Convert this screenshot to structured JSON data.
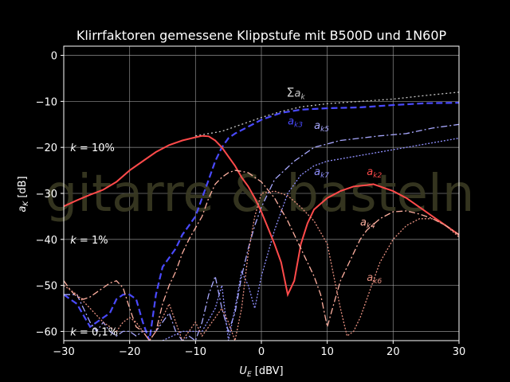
{
  "chart_data": {
    "type": "line",
    "title": "Klirrfaktoren gemessene Klippstufe mit B500D und 1N60P",
    "xlabel_main": "U",
    "xlabel_sub": "E",
    "xlabel_unit": " [dBV]",
    "ylabel_main": "a",
    "ylabel_sub": "K",
    "ylabel_unit": " [dB]",
    "xlim": [
      -30,
      30
    ],
    "ylim": [
      -62,
      2
    ],
    "xticks": [
      -30,
      -20,
      -10,
      0,
      10,
      20,
      30
    ],
    "yticks": [
      0,
      -10,
      -20,
      -30,
      -40,
      -50,
      -60
    ],
    "xtick_labels": [
      "−30",
      "−20",
      "−10",
      "0",
      "10",
      "20",
      "30"
    ],
    "ytick_labels": [
      "0",
      "−10",
      "−20",
      "−30",
      "−40",
      "−50",
      "−60"
    ],
    "grid": true,
    "watermark": "gitarre & basteln",
    "annotations": [
      {
        "text": "k = 10%",
        "x": -29,
        "y": -20
      },
      {
        "text": "k = 1%",
        "x": -29,
        "y": -40
      },
      {
        "text": "k = 0,1%",
        "x": -29,
        "y": -60
      }
    ],
    "series": [
      {
        "name": "Σ a",
        "sub": "k",
        "color": "#c8c8c8",
        "dash": "2,3",
        "label_x": 3.8,
        "label_y": -9,
        "x": [
          -10,
          -6,
          -3,
          0,
          3,
          6,
          10,
          15,
          20,
          25,
          30
        ],
        "y": [
          -17.5,
          -16.5,
          -15,
          -13.5,
          -12.2,
          -11.2,
          -10.5,
          -10,
          -9.5,
          -8.7,
          -8
        ]
      },
      {
        "name": "a",
        "sub": "k3",
        "color": "#4a4aff",
        "dash": "8,4",
        "label_x": 4,
        "label_y": -15,
        "x": [
          -30,
          -28,
          -26,
          -24,
          -23,
          -22,
          -21,
          -20,
          -19,
          -18,
          -17,
          -16,
          -15,
          -14,
          -13,
          -12,
          -11,
          -10,
          -9,
          -8,
          -7,
          -6,
          -5,
          -4,
          -2,
          0,
          3,
          6,
          10,
          15,
          20,
          25,
          30
        ],
        "y": [
          -52,
          -54,
          -59,
          -57,
          -56,
          -53,
          -52,
          -52,
          -53,
          -58,
          -62,
          -52,
          -46,
          -44,
          -42,
          -39,
          -37,
          -35,
          -31,
          -27,
          -23,
          -20,
          -18,
          -17,
          -15.5,
          -14,
          -12.5,
          -11.8,
          -11.5,
          -11.3,
          -10.8,
          -10.4,
          -10.3
        ]
      },
      {
        "name": "a",
        "sub": "k5",
        "color": "#a8a8ff",
        "dash": "8,3,2,3",
        "label_x": 8,
        "label_y": -16,
        "x": [
          -30,
          -28,
          -27,
          -26,
          -25,
          -24,
          -23,
          -22,
          -21,
          -20,
          -19,
          -18,
          -17,
          -16,
          -15,
          -14,
          -13,
          -12,
          -11,
          -10,
          -9,
          -8,
          -7,
          -6,
          -5,
          -4,
          -3,
          -2,
          -1,
          0,
          2,
          5,
          8,
          12,
          18,
          22,
          26,
          30
        ],
        "y": [
          -52,
          -52,
          -55,
          -58,
          -60,
          -58,
          -60,
          -61,
          -60,
          -60,
          -61,
          -60,
          -60,
          -60,
          -58,
          -56,
          -60,
          -62,
          -61,
          -62,
          -58,
          -52,
          -48,
          -55,
          -60,
          -56,
          -48,
          -42,
          -37,
          -33,
          -27,
          -23,
          -20,
          -18.5,
          -17.5,
          -17,
          -15.8,
          -15
        ]
      },
      {
        "name": "a",
        "sub": "k7",
        "color": "#9090ff",
        "dash": "2,2",
        "label_x": 8,
        "label_y": -26,
        "x": [
          -15,
          -12,
          -9,
          -7,
          -6,
          -5,
          -4,
          -3,
          -2,
          -1,
          0,
          2,
          4,
          6,
          8,
          10,
          14,
          18,
          22,
          26,
          30
        ],
        "y": [
          -62,
          -60,
          -60,
          -55,
          -50,
          -62,
          -55,
          -47,
          -50,
          -55,
          -48,
          -38,
          -30,
          -26,
          -24,
          -23,
          -22,
          -21,
          -20,
          -19,
          -18
        ]
      },
      {
        "name": "a",
        "sub": "k2",
        "color": "#ff4a4a",
        "dash": "",
        "label_x": 16,
        "label_y": -26,
        "x": [
          -30,
          -28,
          -26,
          -24,
          -22,
          -20,
          -18,
          -16,
          -14,
          -12,
          -10,
          -9,
          -8,
          -7,
          -6,
          -5,
          -4,
          -3,
          -2,
          -1,
          0,
          1,
          2,
          3,
          4,
          5,
          6,
          7,
          8,
          10,
          12,
          14,
          16,
          17,
          18,
          20,
          22,
          24,
          26,
          28,
          30
        ],
        "y": [
          -32.8,
          -31.5,
          -30.3,
          -29.2,
          -27.5,
          -25,
          -23,
          -21,
          -19.5,
          -18.5,
          -17.8,
          -17.5,
          -17.6,
          -18.5,
          -20,
          -22,
          -24,
          -26.5,
          -28.5,
          -31,
          -34,
          -37.5,
          -41,
          -45,
          -52,
          -49,
          -41,
          -36.5,
          -33.5,
          -31,
          -29.5,
          -28.5,
          -28.2,
          -28,
          -28.5,
          -29.5,
          -31,
          -33,
          -35,
          -37,
          -39
        ]
      },
      {
        "name": "a",
        "sub": "k4",
        "color": "#ffb0a0",
        "dash": "8,3,2,3",
        "label_x": 15,
        "label_y": -37,
        "x": [
          -30,
          -29,
          -28,
          -27,
          -26,
          -25,
          -24,
          -23,
          -22,
          -21,
          -20,
          -19,
          -18,
          -17,
          -16,
          -15,
          -14,
          -13,
          -12,
          -11,
          -10,
          -9,
          -8,
          -7,
          -6,
          -5,
          -4,
          -3,
          -2,
          -1,
          0,
          2,
          4,
          6,
          8,
          9,
          10,
          11,
          12,
          13,
          14,
          15,
          16,
          18,
          20,
          22,
          24,
          26,
          28,
          30
        ],
        "y": [
          -49,
          -51,
          -52.5,
          -53,
          -52.5,
          -51.5,
          -50.5,
          -49.5,
          -49,
          -50.5,
          -55,
          -59,
          -60,
          -62,
          -60,
          -54,
          -50,
          -47,
          -43,
          -40,
          -37.5,
          -35,
          -31,
          -28,
          -26.5,
          -25.5,
          -25,
          -25.2,
          -25.5,
          -26.5,
          -27.5,
          -31,
          -36,
          -42,
          -48,
          -52,
          -59,
          -54,
          -49,
          -46,
          -43,
          -40,
          -38,
          -35.5,
          -34,
          -33.8,
          -34.5,
          -35.5,
          -37,
          -39
        ]
      },
      {
        "name": "a",
        "sub": "k6",
        "color": "#e89080",
        "dash": "2,2",
        "label_x": 16,
        "label_y": -49,
        "x": [
          -30,
          -28,
          -26,
          -24,
          -22,
          -21,
          -20,
          -19,
          -18,
          -17,
          -16,
          -15,
          -14,
          -13,
          -12,
          -11,
          -10,
          -9,
          -8,
          -7,
          -6,
          -5,
          -4,
          -3,
          -2,
          -1,
          0,
          2,
          4,
          6,
          8,
          10,
          11,
          12,
          13,
          14,
          15,
          16,
          17,
          18,
          20,
          22,
          24,
          26,
          28,
          30
        ],
        "y": [
          -50,
          -52,
          -55,
          -58,
          -60,
          -58,
          -57,
          -58,
          -60,
          -62,
          -60,
          -57,
          -54,
          -58,
          -62,
          -60,
          -58,
          -61,
          -59,
          -57,
          -55,
          -58,
          -62,
          -55,
          -43,
          -35,
          -30,
          -29.5,
          -30.5,
          -33,
          -36,
          -41,
          -48,
          -55,
          -61,
          -60,
          -57,
          -53,
          -49,
          -45,
          -40,
          -37,
          -35.5,
          -35.5,
          -37,
          -39.5
        ]
      }
    ]
  }
}
